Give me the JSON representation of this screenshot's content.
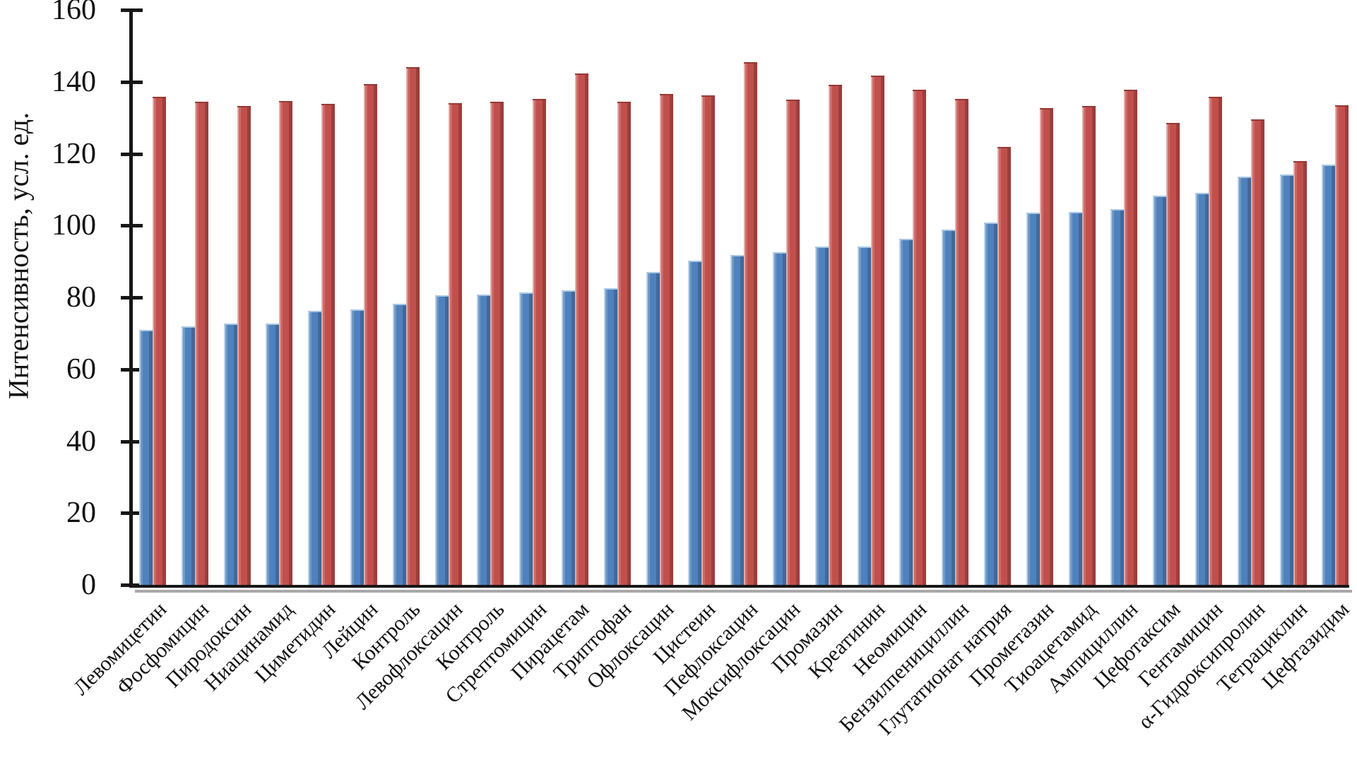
{
  "chart_data": {
    "type": "bar",
    "title": "",
    "xlabel": "",
    "ylabel": "Интенсивность, усл. ед.",
    "ylim": [
      0,
      160
    ],
    "yticks": [
      0,
      20,
      40,
      60,
      80,
      100,
      120,
      140,
      160
    ],
    "grid": false,
    "legend_position": "none",
    "bar_colors": {
      "blue": "#4F81BD",
      "red": "#C0504D"
    },
    "categories": [
      "Левомицетин",
      "Фосфомицин",
      "Пиродоксин",
      "Ниацинамид",
      "Циметидин",
      "Лейцин",
      "Контроль",
      "Левофлоксацин",
      "Контроль",
      "Стрептомицин",
      "Пирацетам",
      "Триптофан",
      "Офлоксацин",
      "Цистеин",
      "Пефлоксацин",
      "Моксифлоксацин",
      "Промазин",
      "Креатинин",
      "Неомицин",
      "Бензилпенициллин",
      "Глутатионат натрия",
      "Прометазин",
      "Тиоацетамид",
      "Ампициллин",
      "Цефотаксим",
      "Гентамицин",
      "α-Гидроксипролин",
      "Тетрациклин",
      "Цефтазидим"
    ],
    "series": [
      {
        "id": "blue",
        "color": "#4F81BD",
        "values": [
          71.0,
          71.9,
          72.7,
          72.7,
          76.2,
          76.6,
          78.2,
          80.6,
          80.7,
          81.4,
          82.0,
          82.6,
          87.0,
          90.3,
          91.8,
          92.5,
          94.2,
          94.2,
          96.4,
          98.8,
          100.8,
          103.6,
          103.7,
          104.5,
          108.4,
          109.1,
          113.6,
          114.3,
          116.9
        ]
      },
      {
        "id": "red",
        "color": "#C0504D",
        "values": [
          135.8,
          134.5,
          133.2,
          134.6,
          133.8,
          139.3,
          144.0,
          134.1,
          134.5,
          135.3,
          142.3,
          134.5,
          136.6,
          136.2,
          145.5,
          135.0,
          139.2,
          141.7,
          137.8,
          135.3,
          121.9,
          132.6,
          133.3,
          137.8,
          128.6,
          135.9,
          129.5,
          117.9,
          133.5
        ]
      }
    ]
  }
}
